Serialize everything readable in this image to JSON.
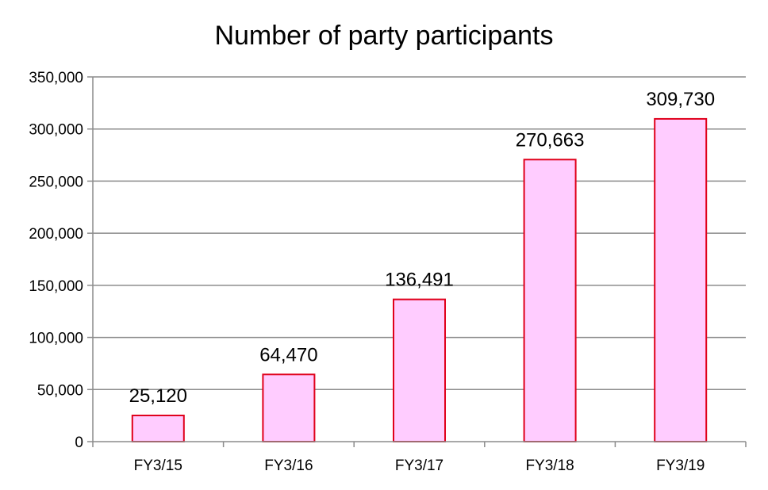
{
  "chart_data": {
    "type": "bar",
    "title": "Number of party participants",
    "categories": [
      "FY3/15",
      "FY3/16",
      "FY3/17",
      "FY3/18",
      "FY3/19"
    ],
    "values": [
      25120,
      64470,
      136491,
      270663,
      309730
    ],
    "value_labels": [
      "25,120",
      "64,470",
      "136,491",
      "270,663",
      "309,730"
    ],
    "ylim": [
      0,
      350000
    ],
    "yticks": [
      0,
      50000,
      100000,
      150000,
      200000,
      250000,
      300000,
      350000
    ],
    "ytick_labels": [
      "0",
      "50,000",
      "100,000",
      "150,000",
      "200,000",
      "250,000",
      "300,000",
      "350,000"
    ],
    "grid": true,
    "legend": "none",
    "colors": {
      "bar_fill": "#ffccff",
      "bar_stroke": "#e0001b",
      "grid": "#8c8c8c",
      "axis": "#8c8c8c"
    }
  }
}
